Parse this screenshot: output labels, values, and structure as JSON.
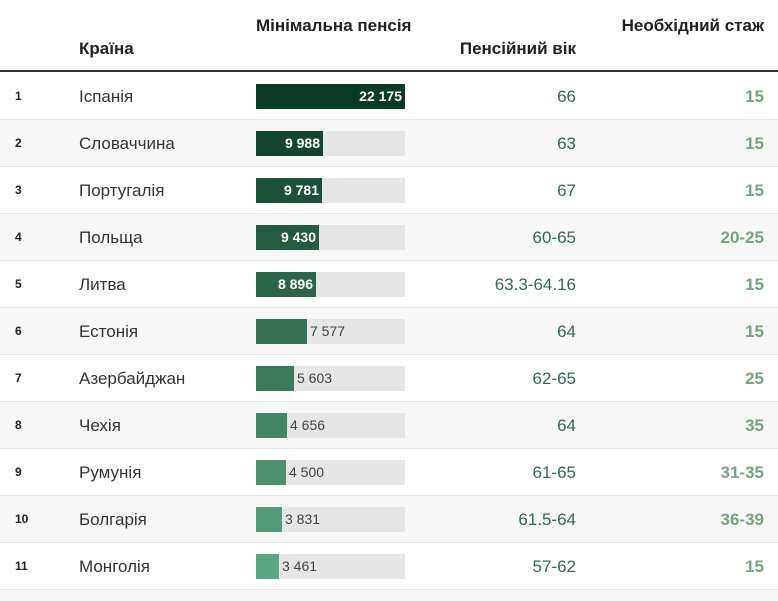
{
  "header": {
    "country": "Країна",
    "pension": "Мінімальна пенсія",
    "age": "Пенсійний вік",
    "stazh": "Необхідний стаж"
  },
  "chart_data": {
    "type": "table",
    "columns": [
      "",
      "Країна",
      "Мінімальна пенсія",
      "Пенсійний вік",
      "Необхідний стаж"
    ],
    "bar_column": "Мінімальна пенсія",
    "bar_max": 22175,
    "rows": [
      {
        "rank": "1",
        "country": "Іспанія",
        "pension": 22175,
        "pension_label": "22 175",
        "age": "66",
        "stazh": "15"
      },
      {
        "rank": "2",
        "country": "Словаччина",
        "pension": 9988,
        "pension_label": "9 988",
        "age": "63",
        "stazh": "15"
      },
      {
        "rank": "3",
        "country": "Португалія",
        "pension": 9781,
        "pension_label": "9 781",
        "age": "67",
        "stazh": "15"
      },
      {
        "rank": "4",
        "country": "Польща",
        "pension": 9430,
        "pension_label": "9 430",
        "age": "60-65",
        "stazh": "20-25"
      },
      {
        "rank": "5",
        "country": "Литва",
        "pension": 8896,
        "pension_label": "8 896",
        "age": "63.3-64.16",
        "stazh": "15"
      },
      {
        "rank": "6",
        "country": "Естонія",
        "pension": 7577,
        "pension_label": "7 577",
        "age": "64",
        "stazh": "15"
      },
      {
        "rank": "7",
        "country": "Азербайджан",
        "pension": 5603,
        "pension_label": "5 603",
        "age": "62-65",
        "stazh": "25"
      },
      {
        "rank": "8",
        "country": "Чехія",
        "pension": 4656,
        "pension_label": "4 656",
        "age": "64",
        "stazh": "35"
      },
      {
        "rank": "9",
        "country": "Румунія",
        "pension": 4500,
        "pension_label": "4 500",
        "age": "61-65",
        "stazh": "31-35"
      },
      {
        "rank": "10",
        "country": "Болгарія",
        "pension": 3831,
        "pension_label": "3 831",
        "age": "61.5-64",
        "stazh": "36-39"
      },
      {
        "rank": "11",
        "country": "Монголія",
        "pension": 3461,
        "pension_label": "3 461",
        "age": "57-62",
        "stazh": "15"
      }
    ]
  },
  "colors": {
    "bar_dark": "#0b3a26",
    "bar_light": "#5aa684",
    "track": "#e6e6e6",
    "age_text": "#2e6b4f",
    "stazh_text": "#74a57f"
  }
}
